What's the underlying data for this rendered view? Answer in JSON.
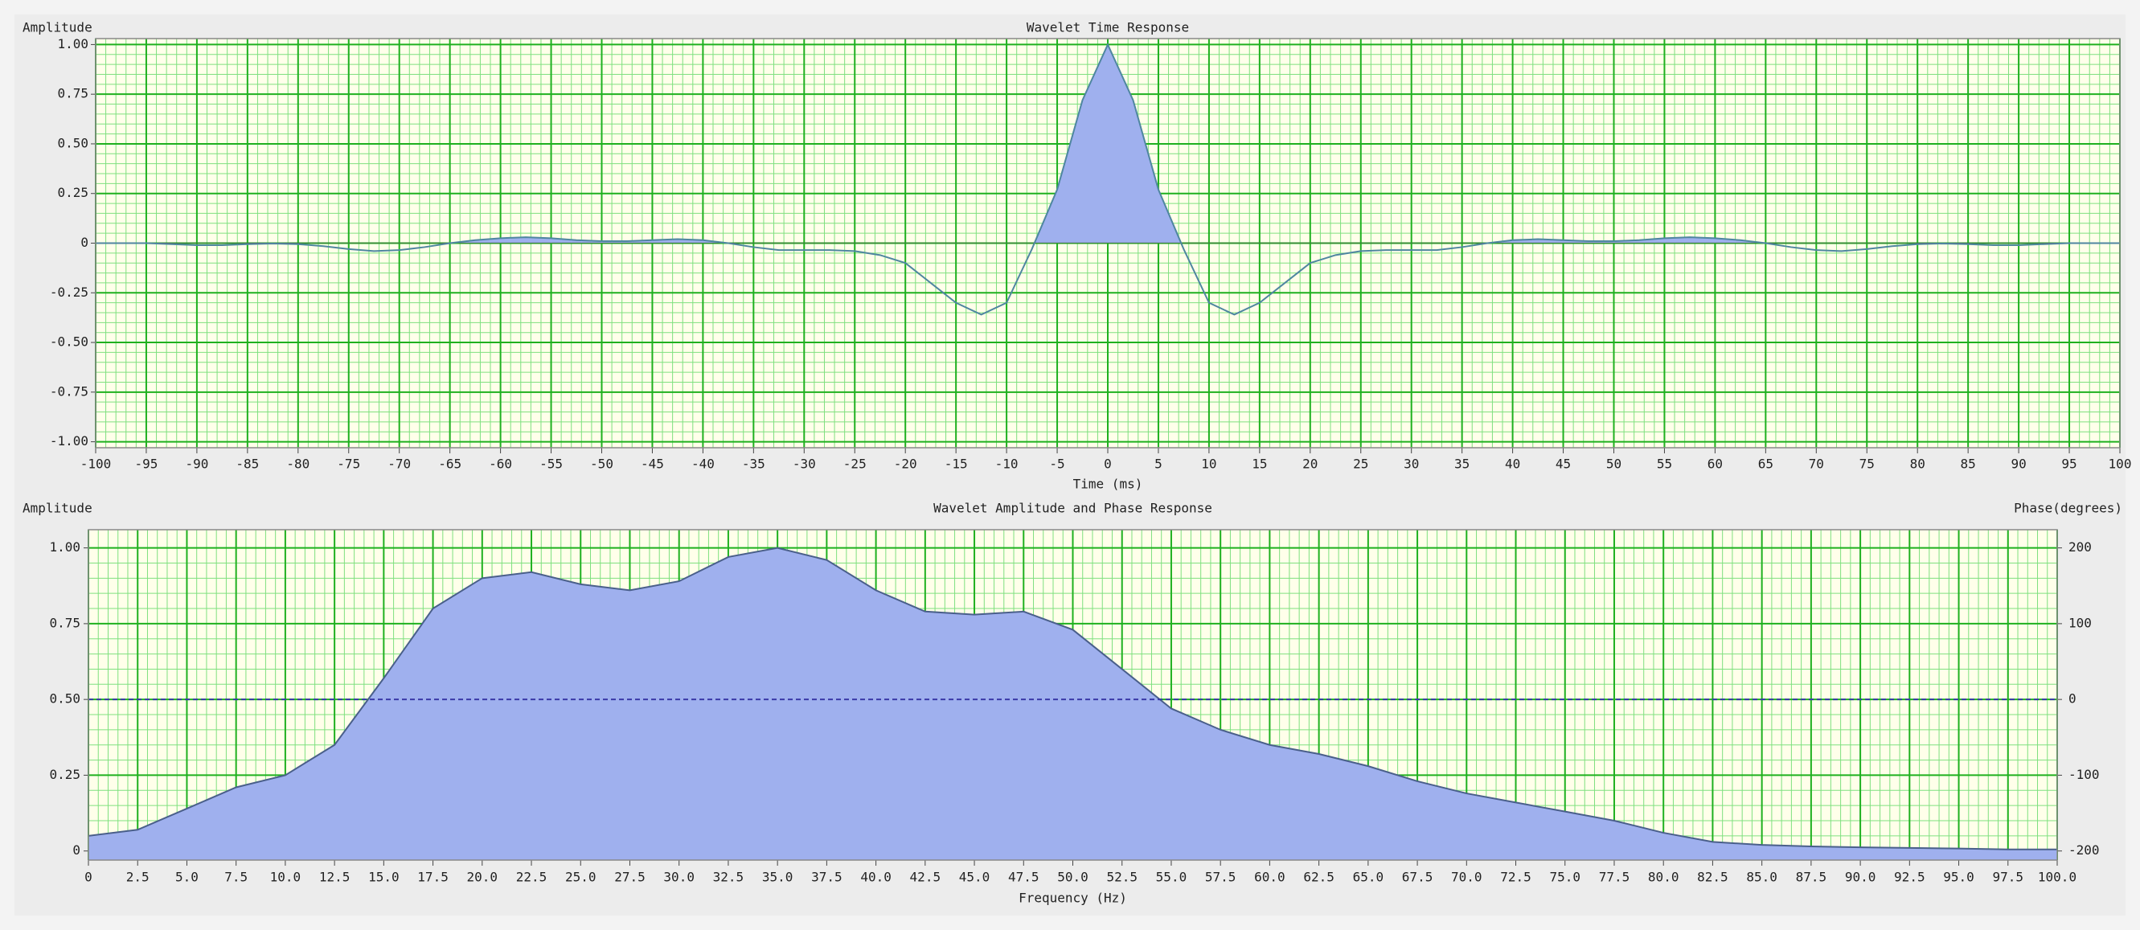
{
  "chart_data": [
    {
      "type": "area",
      "title": "Wavelet Time Response",
      "ylabel": "Amplitude",
      "xlabel": "Time (ms)",
      "x": [
        -100,
        -97.5,
        -95,
        -92.5,
        -90,
        -87.5,
        -85,
        -82.5,
        -80,
        -77.5,
        -75,
        -72.5,
        -70,
        -67.5,
        -65,
        -62.5,
        -60,
        -57.5,
        -55,
        -52.5,
        -50,
        -47.5,
        -45,
        -42.5,
        -40,
        -37.5,
        -35,
        -32.5,
        -30,
        -27.5,
        -25,
        -22.5,
        -20,
        -17.5,
        -15,
        -12.5,
        -10,
        -7.5,
        -5,
        -2.5,
        0,
        2.5,
        5,
        7.5,
        10,
        12.5,
        15,
        17.5,
        20,
        22.5,
        25,
        27.5,
        30,
        32.5,
        35,
        37.5,
        40,
        42.5,
        45,
        47.5,
        50,
        52.5,
        55,
        57.5,
        60,
        62.5,
        65,
        67.5,
        70,
        72.5,
        75,
        77.5,
        80,
        82.5,
        85,
        87.5,
        90,
        92.5,
        95,
        97.5,
        100
      ],
      "values": [
        0,
        0,
        0,
        -0.005,
        -0.01,
        -0.01,
        -0.005,
        -0.002,
        -0.005,
        -0.015,
        -0.03,
        -0.04,
        -0.035,
        -0.02,
        0.0,
        0.015,
        0.025,
        0.03,
        0.025,
        0.015,
        0.01,
        0.01,
        0.015,
        0.02,
        0.015,
        0.0,
        -0.02,
        -0.035,
        -0.035,
        -0.035,
        -0.04,
        -0.06,
        -0.1,
        -0.2,
        -0.3,
        -0.36,
        -0.3,
        -0.03,
        0.27,
        0.72,
        1.0,
        0.72,
        0.27,
        -0.03,
        -0.3,
        -0.36,
        -0.3,
        -0.2,
        -0.1,
        -0.06,
        -0.04,
        -0.035,
        -0.035,
        -0.035,
        -0.02,
        0.0,
        0.015,
        0.02,
        0.015,
        0.01,
        0.01,
        0.015,
        0.025,
        0.03,
        0.025,
        0.015,
        0.0,
        -0.02,
        -0.035,
        -0.04,
        -0.03,
        -0.015,
        -0.005,
        -0.002,
        -0.005,
        -0.01,
        -0.01,
        -0.005,
        0,
        0,
        0
      ],
      "color": "#4f86a0",
      "fill_color": "#9fb0ee",
      "fill_mode": "positive",
      "xlim": [
        -100,
        100
      ],
      "xticks": [
        -100,
        -95,
        -90,
        -85,
        -80,
        -75,
        -70,
        -65,
        -60,
        -55,
        -50,
        -45,
        -40,
        -35,
        -30,
        -25,
        -20,
        -15,
        -10,
        -5,
        0,
        5,
        10,
        15,
        20,
        25,
        30,
        35,
        40,
        45,
        50,
        55,
        60,
        65,
        70,
        75,
        80,
        85,
        90,
        95,
        100
      ],
      "ylim": [
        -1.03,
        1.03
      ],
      "yticks": [
        {
          "value": -1,
          "label": "-1.00"
        },
        -0.75,
        {
          "value": -0.5,
          "label": "-0.50"
        },
        -0.25,
        0,
        0.25,
        {
          "value": 0.5,
          "label": "0.50"
        },
        0.75,
        {
          "value": 1,
          "label": "1.00"
        }
      ],
      "grid": true
    },
    {
      "type": "area",
      "title": "Wavelet Amplitude and Phase Response",
      "ylabel": "Amplitude",
      "y2label": "Phase(degrees)",
      "xlabel": "Frequency (Hz)",
      "x": [
        0,
        2.5,
        5,
        7.5,
        10,
        12.5,
        15,
        17.5,
        20,
        22.5,
        25,
        27.5,
        30,
        32.5,
        35,
        37.5,
        40,
        42.5,
        45,
        47.5,
        50,
        52.5,
        55,
        57.5,
        60,
        62.5,
        65,
        67.5,
        70,
        72.5,
        75,
        77.5,
        80,
        82.5,
        85,
        87.5,
        90,
        92.5,
        95,
        97.5,
        100
      ],
      "series": [
        {
          "color": "#4a5f8a",
          "fill_color": "#9fb0ee",
          "fill_mode": "below",
          "values": [
            0.05,
            0.07,
            0.14,
            0.21,
            0.25,
            0.35,
            0.57,
            0.8,
            0.9,
            0.92,
            0.88,
            0.86,
            0.89,
            0.97,
            1.0,
            0.96,
            0.86,
            0.79,
            0.78,
            0.79,
            0.73,
            0.6,
            0.47,
            0.4,
            0.35,
            0.32,
            0.28,
            0.23,
            0.19,
            0.16,
            0.13,
            0.1,
            0.06,
            0.03,
            0.02,
            0.015,
            0.012,
            0.01,
            0.008,
            0.005,
            0.005
          ]
        },
        {
          "color": "#3a3aa8",
          "line_style": "dashed",
          "axis": "y2",
          "values": [
            0,
            0,
            0,
            0,
            0,
            0,
            0,
            0,
            0,
            0,
            0,
            0,
            0,
            0,
            0,
            0,
            0,
            0,
            0,
            0,
            0,
            0,
            0,
            0,
            0,
            0,
            0,
            0,
            0,
            0,
            0,
            0,
            0,
            0,
            0,
            0,
            0,
            0,
            0,
            0,
            0
          ]
        }
      ],
      "xlim": [
        0,
        100
      ],
      "xticks": [
        0,
        2.5,
        {
          "value": 5,
          "label": "5.0"
        },
        7.5,
        {
          "value": 10,
          "label": "10.0"
        },
        12.5,
        {
          "value": 15,
          "label": "15.0"
        },
        17.5,
        {
          "value": 20,
          "label": "20.0"
        },
        22.5,
        {
          "value": 25,
          "label": "25.0"
        },
        27.5,
        {
          "value": 30,
          "label": "30.0"
        },
        32.5,
        {
          "value": 35,
          "label": "35.0"
        },
        37.5,
        {
          "value": 40,
          "label": "40.0"
        },
        42.5,
        {
          "value": 45,
          "label": "45.0"
        },
        47.5,
        {
          "value": 50,
          "label": "50.0"
        },
        52.5,
        {
          "value": 55,
          "label": "55.0"
        },
        57.5,
        {
          "value": 60,
          "label": "60.0"
        },
        62.5,
        {
          "value": 65,
          "label": "65.0"
        },
        67.5,
        {
          "value": 70,
          "label": "70.0"
        },
        72.5,
        {
          "value": 75,
          "label": "75.0"
        },
        77.5,
        {
          "value": 80,
          "label": "80.0"
        },
        82.5,
        {
          "value": 85,
          "label": "85.0"
        },
        87.5,
        {
          "value": 90,
          "label": "90.0"
        },
        92.5,
        {
          "value": 95,
          "label": "95.0"
        },
        97.5,
        {
          "value": 100,
          "label": "100.0"
        }
      ],
      "ylim": [
        -0.03,
        1.06
      ],
      "yticks": [
        0,
        0.25,
        {
          "value": 0.5,
          "label": "0.50"
        },
        0.75,
        {
          "value": 1,
          "label": "1.00"
        }
      ],
      "y2lim": [
        -212,
        224
      ],
      "y2ticks": [
        -200,
        -100,
        0,
        100,
        200
      ],
      "grid": true
    }
  ]
}
